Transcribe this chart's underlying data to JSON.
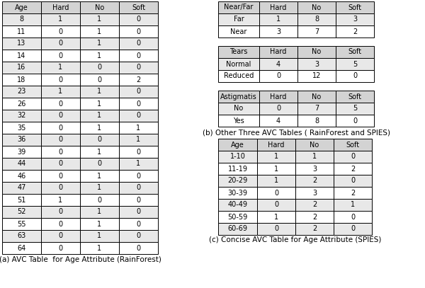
{
  "table_a": {
    "headers": [
      "Age",
      "Hard",
      "No",
      "Soft"
    ],
    "rows": [
      [
        "8",
        "1",
        "1",
        "0"
      ],
      [
        "11",
        "0",
        "1",
        "0"
      ],
      [
        "13",
        "0",
        "1",
        "0"
      ],
      [
        "14",
        "0",
        "1",
        "0"
      ],
      [
        "16",
        "1",
        "0",
        "0"
      ],
      [
        "18",
        "0",
        "0",
        "2"
      ],
      [
        "23",
        "1",
        "1",
        "0"
      ],
      [
        "26",
        "0",
        "1",
        "0"
      ],
      [
        "32",
        "0",
        "1",
        "0"
      ],
      [
        "35",
        "0",
        "1",
        "1"
      ],
      [
        "36",
        "0",
        "0",
        "1"
      ],
      [
        "39",
        "0",
        "1",
        "0"
      ],
      [
        "44",
        "0",
        "0",
        "1"
      ],
      [
        "46",
        "0",
        "1",
        "0"
      ],
      [
        "47",
        "0",
        "1",
        "0"
      ],
      [
        "51",
        "1",
        "0",
        "0"
      ],
      [
        "52",
        "0",
        "1",
        "0"
      ],
      [
        "55",
        "0",
        "1",
        "0"
      ],
      [
        "63",
        "0",
        "1",
        "0"
      ],
      [
        "64",
        "0",
        "1",
        "0"
      ]
    ],
    "caption": "(a) AVC Table  for Age Attribute (RainForest)"
  },
  "table_nearfar": {
    "headers": [
      "Near/Far",
      "Hard",
      "No",
      "Soft"
    ],
    "rows": [
      [
        "Far",
        "1",
        "8",
        "3"
      ],
      [
        "Near",
        "3",
        "7",
        "2"
      ]
    ]
  },
  "table_tears": {
    "headers": [
      "Tears",
      "Hard",
      "No",
      "Soft"
    ],
    "rows": [
      [
        "Normal",
        "4",
        "3",
        "5"
      ],
      [
        "Reduced",
        "0",
        "12",
        "0"
      ]
    ]
  },
  "table_astig": {
    "headers": [
      "Astigmatis",
      "Hard",
      "No",
      "Soft"
    ],
    "rows": [
      [
        "No",
        "0",
        "7",
        "5"
      ],
      [
        "Yes",
        "4",
        "8",
        "0"
      ]
    ]
  },
  "label_b": "(b) Other Three AVC Tables ( RainForest and SPIES)",
  "table_c": {
    "headers": [
      "Age",
      "Hard",
      "No",
      "Soft"
    ],
    "rows": [
      [
        "1-10",
        "1",
        "1",
        "0"
      ],
      [
        "11-19",
        "1",
        "3",
        "2"
      ],
      [
        "20-29",
        "1",
        "2",
        "0"
      ],
      [
        "30-39",
        "0",
        "3",
        "2"
      ],
      [
        "40-49",
        "0",
        "2",
        "1"
      ],
      [
        "50-59",
        "1",
        "2",
        "0"
      ],
      [
        "60-69",
        "0",
        "2",
        "0"
      ]
    ],
    "caption": "(c) Concise AVC Table for Age Attribute (SPIES)"
  },
  "header_bg": "#d3d3d3",
  "row_bg_odd": "#e8e8e8",
  "row_bg_even": "#ffffff",
  "text_color": "#000000",
  "border_color": "#000000",
  "font_size": 7.0,
  "caption_font_size": 7.5,
  "fig_width": 6.0,
  "fig_height": 4.07,
  "dpi": 100
}
